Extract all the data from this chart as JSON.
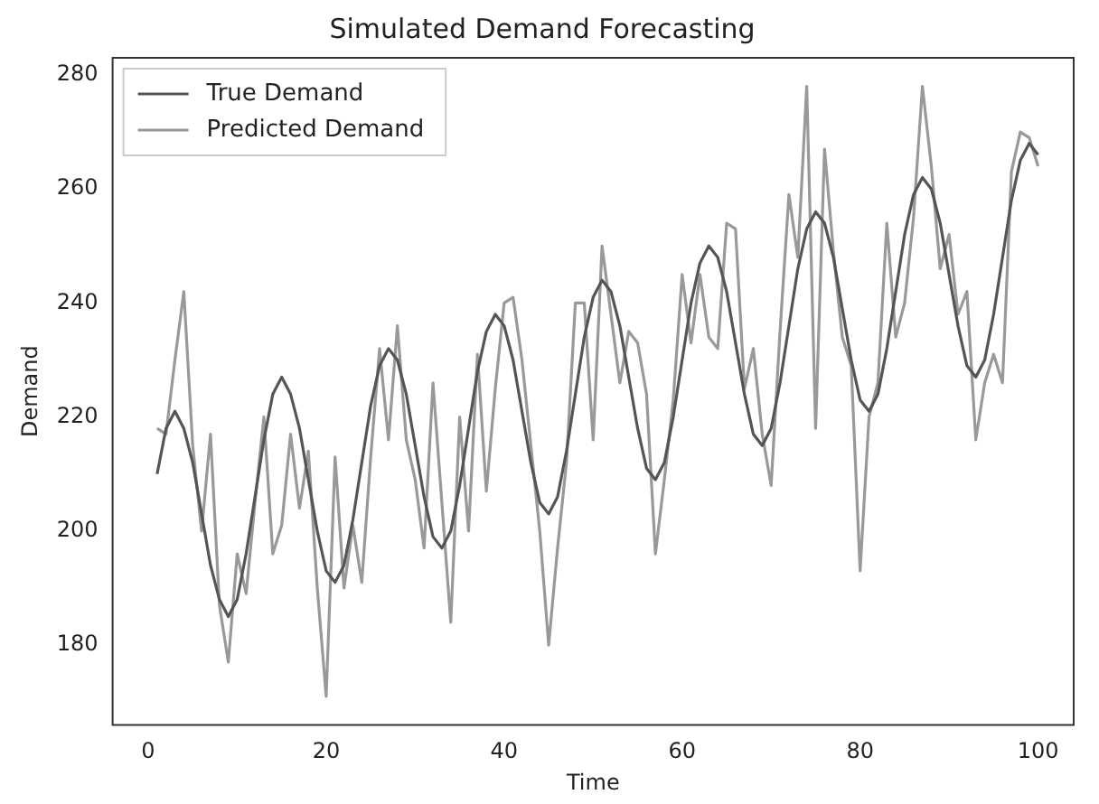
{
  "chart_data": {
    "type": "line",
    "title": "Simulated Demand Forecasting",
    "xlabel": "Time",
    "ylabel": "Demand",
    "x": [
      1,
      2,
      3,
      4,
      5,
      6,
      7,
      8,
      9,
      10,
      11,
      12,
      13,
      14,
      15,
      16,
      17,
      18,
      19,
      20,
      21,
      22,
      23,
      24,
      25,
      26,
      27,
      28,
      29,
      30,
      31,
      32,
      33,
      34,
      35,
      36,
      37,
      38,
      39,
      40,
      41,
      42,
      43,
      44,
      45,
      46,
      47,
      48,
      49,
      50,
      51,
      52,
      53,
      54,
      55,
      56,
      57,
      58,
      59,
      60,
      61,
      62,
      63,
      64,
      65,
      66,
      67,
      68,
      69,
      70,
      71,
      72,
      73,
      74,
      75,
      76,
      77,
      78,
      79,
      80,
      81,
      82,
      83,
      84,
      85,
      86,
      87,
      88,
      89,
      90,
      91,
      92,
      93,
      94,
      95,
      96,
      97,
      98,
      99,
      100
    ],
    "series": [
      {
        "name": "True Demand",
        "color": "#555555",
        "values": [
          210,
          218,
          221,
          218,
          212,
          203,
          194,
          188,
          185,
          188,
          196,
          206,
          216,
          224,
          227,
          224,
          218,
          209,
          200,
          193,
          191,
          194,
          202,
          212,
          222,
          229,
          232,
          230,
          224,
          215,
          206,
          199,
          197,
          200,
          208,
          218,
          228,
          235,
          238,
          236,
          230,
          221,
          212,
          205,
          203,
          206,
          214,
          224,
          234,
          241,
          244,
          242,
          236,
          227,
          218,
          211,
          209,
          212,
          220,
          230,
          240,
          247,
          250,
          248,
          242,
          233,
          224,
          217,
          215,
          218,
          226,
          236,
          246,
          253,
          256,
          254,
          248,
          239,
          230,
          223,
          221,
          224,
          232,
          242,
          252,
          259,
          262,
          260,
          254,
          245,
          236,
          229,
          227,
          230,
          238,
          248,
          258,
          265,
          268,
          266
        ]
      },
      {
        "name": "Predicted Demand",
        "color": "#999999",
        "values": [
          218,
          217,
          230,
          242,
          215,
          200,
          217,
          187,
          177,
          196,
          189,
          205,
          220,
          196,
          201,
          217,
          204,
          214,
          190,
          171,
          213,
          190,
          201,
          191,
          213,
          232,
          216,
          236,
          216,
          209,
          197,
          226,
          205,
          184,
          220,
          200,
          231,
          207,
          225,
          240,
          241,
          230,
          215,
          200,
          180,
          197,
          212,
          240,
          240,
          216,
          250,
          238,
          226,
          235,
          233,
          224,
          196,
          209,
          223,
          245,
          233,
          245,
          234,
          232,
          254,
          253,
          225,
          232,
          217,
          208,
          235,
          259,
          248,
          278,
          218,
          267,
          249,
          234,
          229,
          193,
          220,
          226,
          254,
          234,
          240,
          255,
          278,
          264,
          246,
          252,
          238,
          242,
          216,
          226,
          231,
          226,
          263,
          270,
          269,
          264
        ]
      }
    ],
    "xlim": [
      -4,
      104
    ],
    "xticks": [
      0,
      20,
      40,
      60,
      80,
      100
    ],
    "ylim": [
      166,
      283
    ],
    "yticks": [
      180,
      200,
      220,
      240,
      260,
      280
    ],
    "legend": "top left",
    "grid": false,
    "marker": "none",
    "line_style": "solid"
  }
}
